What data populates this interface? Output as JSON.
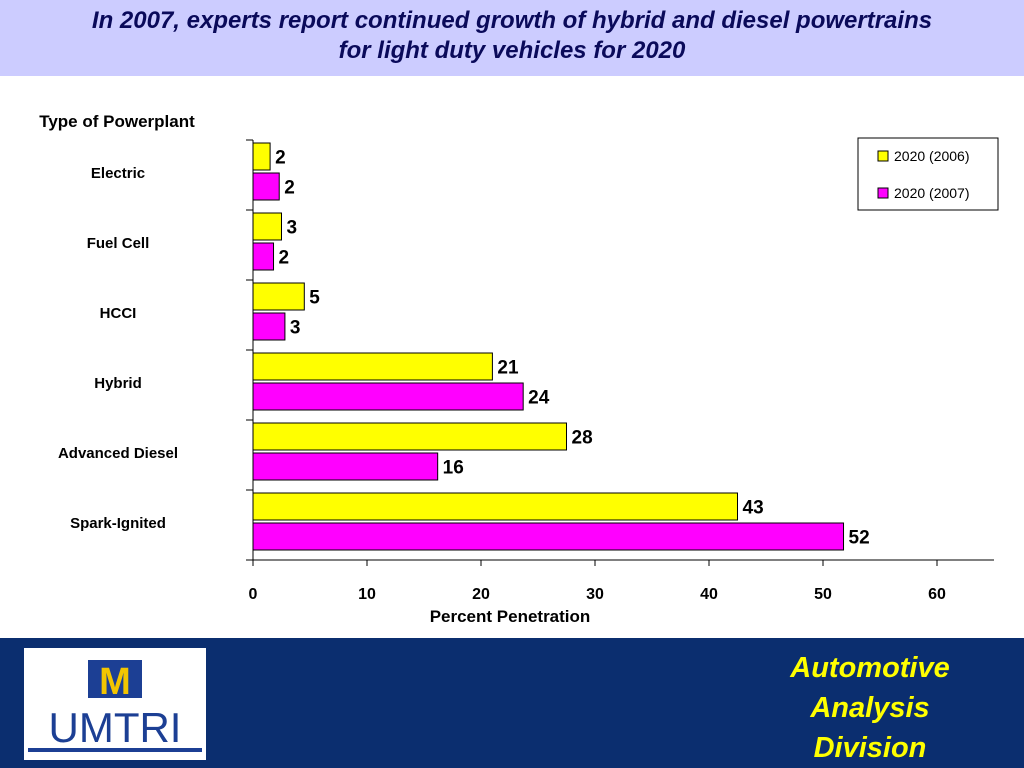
{
  "header": {
    "title_line1": "In 2007, experts report continued growth of hybrid and diesel powertrains",
    "title_line2": "for light duty vehicles for 2020"
  },
  "footer": {
    "logo_text": "UMTRI",
    "logo_letter": "M",
    "division_lines": [
      "Automotive",
      "Analysis",
      "Division"
    ],
    "colors": {
      "background": "#0b2e6f",
      "division_text": "#ffff00",
      "logo_blue": "#1c3f94",
      "logo_maize": "#f2c500"
    }
  },
  "chart_data": {
    "type": "bar",
    "orientation": "horizontal",
    "ylabel": "Type of Powerplant",
    "xlabel": "Percent Penetration",
    "xlim": [
      0,
      65
    ],
    "xticks": [
      0,
      10,
      20,
      30,
      40,
      50,
      60
    ],
    "categories": [
      "Electric",
      "Fuel Cell",
      "HCCI",
      "Hybrid",
      "Advanced Diesel",
      "Spark-Ignited"
    ],
    "series": [
      {
        "name": "2020 (2006)",
        "color": "#ffff00",
        "values": [
          1.5,
          2.5,
          4.5,
          21,
          27.5,
          42.5
        ],
        "labels": [
          "2",
          "3",
          "5",
          "21",
          "28",
          "43"
        ]
      },
      {
        "name": "2020 (2007)",
        "color": "#ff00ff",
        "values": [
          2.3,
          1.8,
          2.8,
          23.7,
          16.2,
          51.8
        ],
        "labels": [
          "2",
          "2",
          "3",
          "24",
          "16",
          "52"
        ]
      }
    ],
    "legend_position": "top-right",
    "grid": false
  }
}
